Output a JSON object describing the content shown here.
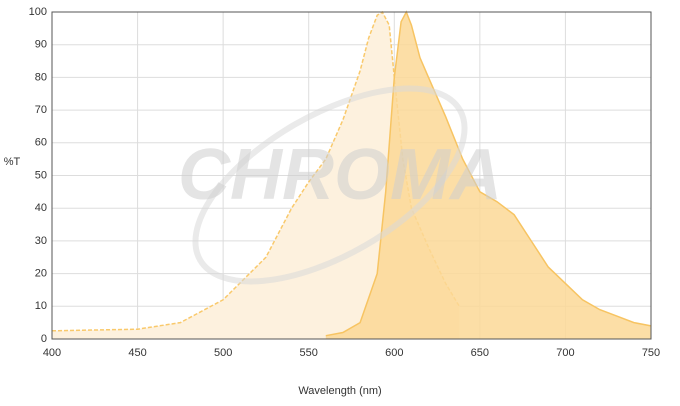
{
  "chart_data": {
    "type": "area",
    "watermark": "CHROMA",
    "xlabel": "Wavelength (nm)",
    "ylabel": "%T",
    "series": [
      {
        "color": "#f9c96b",
        "fill": "#fdf1de",
        "line_style": "dashed",
        "x": [
          400,
          450,
          475,
          500,
          525,
          540,
          550,
          560,
          570,
          580,
          585,
          590,
          593,
          597,
          600,
          605,
          610,
          620,
          630,
          638
        ],
        "values": [
          2.5,
          3,
          5,
          12,
          25,
          40,
          48,
          55,
          67,
          82,
          92,
          99,
          100,
          96,
          80,
          55,
          40,
          28,
          17,
          10
        ]
      },
      {
        "color": "#f7c462",
        "fill": "#fcd896",
        "line_style": "solid",
        "x": [
          560,
          570,
          580,
          590,
          595,
          600,
          604,
          607,
          610,
          615,
          620,
          630,
          640,
          650,
          660,
          670,
          680,
          690,
          700,
          710,
          720,
          730,
          740,
          750
        ],
        "values": [
          1,
          2,
          5,
          20,
          45,
          80,
          97,
          100,
          96,
          86,
          80,
          68,
          55,
          45,
          42,
          38,
          30,
          22,
          17,
          12,
          9,
          7,
          5,
          4
        ]
      }
    ],
    "xlim": [
      400,
      750
    ],
    "xticks": [
      400,
      450,
      500,
      550,
      600,
      650,
      700,
      750
    ],
    "ylim": [
      0,
      100
    ],
    "yticks": [
      0,
      10,
      20,
      30,
      40,
      50,
      60,
      70,
      80,
      90,
      100
    ],
    "grid": true
  }
}
